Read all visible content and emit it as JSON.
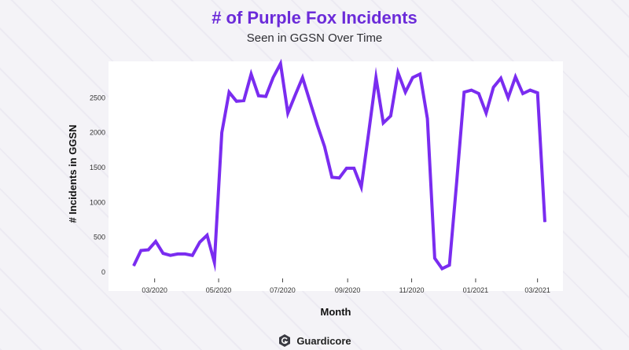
{
  "chart_data": {
    "type": "line",
    "title": "# of Purple Fox Incidents",
    "subtitle": "Seen in GGSN Over Time",
    "xlabel": "Month",
    "ylabel": "# Incidents in GGSN",
    "ylim": [
      0,
      3000
    ],
    "yticks": [
      0,
      500,
      1000,
      1500,
      2000,
      2500
    ],
    "xticks": [
      "03/2020",
      "05/2020",
      "07/2020",
      "09/2020",
      "11/2020",
      "01/2021",
      "03/2021"
    ],
    "x_first": "2020-02-10",
    "x_step": "weekly",
    "series": [
      {
        "color": "#7a2cf0",
        "values": [
          90,
          310,
          320,
          440,
          270,
          240,
          260,
          260,
          240,
          430,
          530,
          140,
          2000,
          2580,
          2450,
          2460,
          2840,
          2530,
          2520,
          2790,
          2990,
          2280,
          2540,
          2790,
          2450,
          2110,
          1800,
          1360,
          1350,
          1490,
          1490,
          1220,
          2000,
          2790,
          2140,
          2240,
          2860,
          2580,
          2790,
          2840,
          2200,
          200,
          50,
          100,
          1300,
          2580,
          2610,
          2560,
          2280,
          2650,
          2780,
          2500,
          2800,
          2560,
          2610,
          2570,
          720
        ]
      }
    ]
  },
  "brand": {
    "name": "Guardicore"
  }
}
